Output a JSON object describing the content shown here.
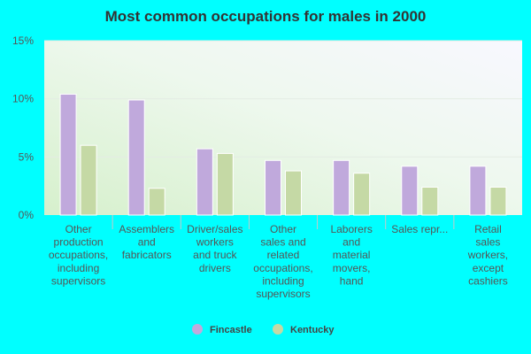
{
  "chart_data": {
    "type": "bar",
    "title": "Most common occupations for males in 2000",
    "categories": [
      [
        "Other",
        "production",
        "occupations,",
        "including",
        "supervisors"
      ],
      [
        "Assemblers",
        "and",
        "fabricators"
      ],
      [
        "Driver/sales",
        "workers",
        "and truck",
        "drivers"
      ],
      [
        "Other",
        "sales and",
        "related",
        "occupations,",
        "including",
        "supervisors"
      ],
      [
        "Laborers",
        "and",
        "material",
        "movers,",
        "hand"
      ],
      [
        "Sales repr..."
      ],
      [
        "Retail",
        "sales",
        "workers,",
        "except",
        "cashiers"
      ]
    ],
    "series": [
      {
        "name": "Fincastle",
        "color": "#c0a9dc",
        "values": [
          10.4,
          9.9,
          5.7,
          4.7,
          4.7,
          4.2,
          4.2
        ]
      },
      {
        "name": "Kentucky",
        "color": "#c5d9a5",
        "values": [
          6.0,
          2.3,
          5.3,
          3.8,
          3.6,
          2.4,
          2.4
        ]
      }
    ],
    "ylim": [
      0,
      15
    ],
    "yticks": [
      0,
      5,
      10,
      15
    ],
    "ytick_labels": [
      "0%",
      "5%",
      "10%",
      "15%"
    ],
    "grid": true,
    "legend_position": "bottom"
  }
}
